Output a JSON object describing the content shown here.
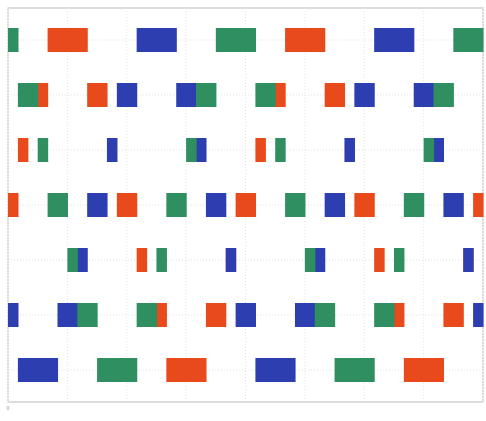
{
  "chart_data": {
    "type": "bar",
    "title": "",
    "xlabel": "",
    "ylabel": "",
    "grid": true,
    "legend": "none",
    "xlim": [
      0,
      48
    ],
    "ylim": [
      0,
      7
    ],
    "x_ticks": [
      "0",
      "",
      "",
      "",
      "",
      "",
      "",
      "",
      ""
    ],
    "y_ticks": [
      "",
      "",
      "",
      "",
      "",
      "",
      ""
    ],
    "samples": 48,
    "series": [
      {
        "color": "#e84a1c",
        "values": [
          3,
          4,
          5,
          5,
          6,
          6,
          6,
          6,
          5,
          5,
          4,
          3,
          3,
          2,
          1,
          1,
          0,
          0,
          0,
          0,
          1,
          1,
          2,
          3,
          3,
          4,
          5,
          5,
          6,
          6,
          6,
          6,
          5,
          5,
          4,
          3,
          3,
          2,
          1,
          1,
          0,
          0,
          0,
          0,
          1,
          1,
          2,
          3
        ]
      },
      {
        "color": "#2d3fb0",
        "values": [
          1,
          0,
          0,
          0,
          0,
          1,
          1,
          2,
          3,
          3,
          4,
          5,
          5,
          6,
          6,
          6,
          6,
          5,
          5,
          4,
          3,
          3,
          2,
          1,
          1,
          0,
          0,
          0,
          0,
          1,
          1,
          2,
          3,
          3,
          4,
          5,
          5,
          6,
          6,
          6,
          6,
          5,
          5,
          4,
          3,
          3,
          2,
          1
        ]
      },
      {
        "color": "#2f8f60",
        "values": [
          6,
          5,
          5,
          4,
          3,
          3,
          2,
          1,
          1,
          0,
          0,
          0,
          0,
          1,
          1,
          2,
          3,
          3,
          4,
          5,
          5,
          6,
          6,
          6,
          6,
          5,
          5,
          4,
          3,
          3,
          2,
          1,
          1,
          0,
          0,
          0,
          0,
          1,
          1,
          2,
          3,
          3,
          4,
          5,
          5,
          6,
          6,
          6
        ]
      }
    ]
  }
}
